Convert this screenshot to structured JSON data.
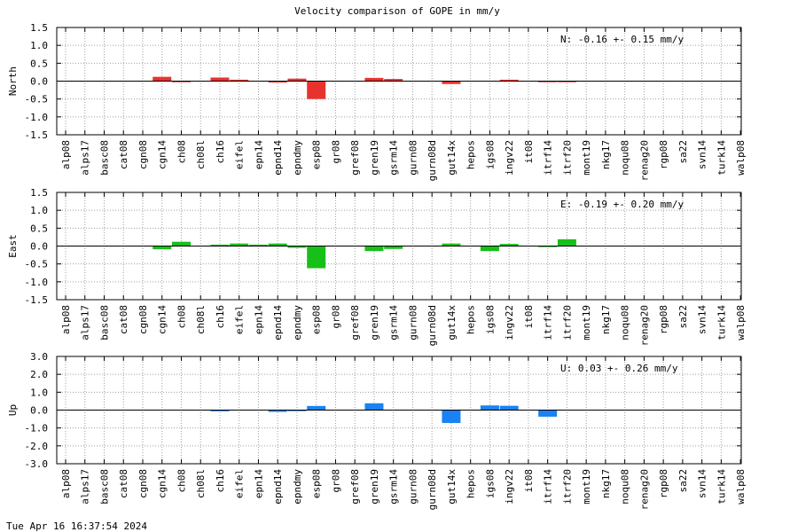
{
  "title": "Velocity comparison of GOPE in mm/y",
  "timestamp": "Tue Apr 16 16:37:54 2024",
  "categories": [
    "alp08",
    "alps17",
    "basc08",
    "cat08",
    "cgn08",
    "cgn14",
    "ch08",
    "ch08l",
    "ch16",
    "eifel",
    "epn14",
    "epnd14",
    "epndmy",
    "esp08",
    "gr08",
    "gref08",
    "gren19",
    "gsrm14",
    "gurn08",
    "gurn08d",
    "gut14x",
    "hepos",
    "igs08",
    "ingv22",
    "it08",
    "itrf14",
    "itrf20",
    "mont19",
    "nkg17",
    "noqu08",
    "renag20",
    "rgp08",
    "sa22",
    "svn14",
    "turk14",
    "walp08"
  ],
  "chart_data": [
    {
      "type": "bar",
      "ylabel": "North",
      "color": "#e8322e",
      "ylim": [
        -1.5,
        1.5
      ],
      "yticks": [
        "1.5",
        "1.0",
        "0.5",
        "0.0",
        "-0.5",
        "-1.0",
        "-1.5"
      ],
      "stat": "N:  -0.16 +-  0.15 mm/y",
      "grid": true,
      "values": [
        null,
        null,
        null,
        null,
        null,
        0.12,
        -0.03,
        null,
        0.1,
        0.04,
        null,
        -0.04,
        0.07,
        -0.5,
        null,
        null,
        0.09,
        0.06,
        null,
        null,
        -0.08,
        null,
        null,
        0.04,
        null,
        -0.03,
        -0.03,
        null,
        null,
        null,
        null,
        null,
        null,
        null,
        null,
        null
      ]
    },
    {
      "type": "bar",
      "ylabel": "East",
      "color": "#16c018",
      "ylim": [
        -1.5,
        1.5
      ],
      "yticks": [
        "1.5",
        "1.0",
        "0.5",
        "0.0",
        "-0.5",
        "-1.0",
        "-1.5"
      ],
      "stat": "E:  -0.19 +-  0.20 mm/y",
      "grid": true,
      "values": [
        null,
        null,
        null,
        null,
        null,
        -0.09,
        0.12,
        null,
        0.04,
        0.07,
        0.04,
        0.07,
        -0.05,
        -0.62,
        null,
        null,
        -0.14,
        -0.08,
        null,
        null,
        0.07,
        null,
        -0.14,
        0.06,
        null,
        -0.03,
        0.19,
        null,
        null,
        null,
        null,
        null,
        null,
        null,
        null,
        null
      ]
    },
    {
      "type": "bar",
      "ylabel": "Up",
      "color": "#1a82f2",
      "ylim": [
        -3.0,
        3.0
      ],
      "yticks": [
        "3.0",
        "2.0",
        "1.0",
        "0.0",
        "-1.0",
        "-2.0",
        "-3.0"
      ],
      "stat": "U:   0.03 +-  0.26 mm/y",
      "grid": true,
      "values": [
        null,
        null,
        null,
        null,
        null,
        null,
        null,
        null,
        -0.07,
        null,
        null,
        -0.1,
        -0.06,
        0.23,
        null,
        null,
        0.38,
        null,
        null,
        null,
        -0.72,
        null,
        0.26,
        0.24,
        null,
        -0.37,
        null,
        null,
        null,
        null,
        null,
        null,
        null,
        null,
        null,
        null
      ]
    }
  ]
}
